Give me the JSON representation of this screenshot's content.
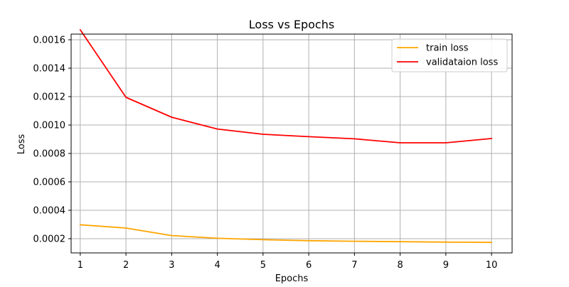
{
  "chart_data": {
    "type": "line",
    "title": "Loss vs Epochs",
    "xlabel": "Epochs",
    "ylabel": "Loss",
    "x": [
      1,
      2,
      3,
      4,
      5,
      6,
      7,
      8,
      9,
      10
    ],
    "xlim": [
      0.8,
      10.45
    ],
    "ylim": [
      0.0001,
      0.00164
    ],
    "yticks": [
      0.0002,
      0.0004,
      0.0006,
      0.0008,
      0.001,
      0.0012,
      0.0014,
      0.0016
    ],
    "ytick_labels": [
      "0.0002",
      "0.0004",
      "0.0006",
      "0.0008",
      "0.0010",
      "0.0012",
      "0.0014",
      "0.0016"
    ],
    "xtick_labels": [
      "1",
      "2",
      "3",
      "4",
      "5",
      "6",
      "7",
      "8",
      "9",
      "10"
    ],
    "grid": true,
    "legend_position": "top-right",
    "series": [
      {
        "name": "train loss",
        "color": "#ffa500",
        "values": [
          0.000298,
          0.000275,
          0.000222,
          0.000203,
          0.000193,
          0.000186,
          0.000182,
          0.000179,
          0.000176,
          0.000174
        ]
      },
      {
        "name": "validataion loss",
        "color": "#ff0000",
        "values": [
          0.00167,
          0.001195,
          0.001055,
          0.000972,
          0.000935,
          0.000918,
          0.000903,
          0.000875,
          0.000875,
          0.000905
        ]
      }
    ]
  }
}
